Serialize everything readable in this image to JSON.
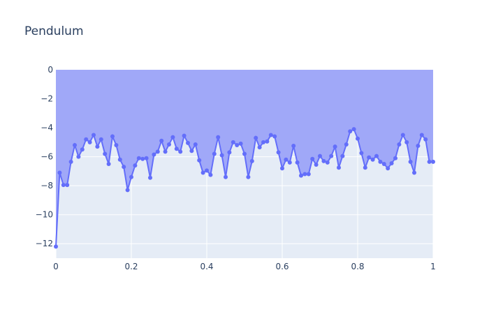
{
  "chart_data": {
    "type": "area",
    "title": "Pendulum",
    "xlabel": "",
    "ylabel": "",
    "xlim": [
      0,
      1
    ],
    "ylim": [
      -13,
      0
    ],
    "xticks": [
      0,
      0.2,
      0.4,
      0.6,
      0.8,
      1
    ],
    "xtick_labels": [
      "0",
      "0.2",
      "0.4",
      "0.6",
      "0.8",
      "1"
    ],
    "yticks": [
      -12,
      -10,
      -8,
      -6,
      -4,
      -2,
      0
    ],
    "ytick_labels": [
      "−12",
      "−10",
      "−8",
      "−6",
      "−4",
      "−2",
      "0"
    ],
    "grid": true,
    "fill_to": "top",
    "colors": {
      "line": "#636efa",
      "fill": "#a0a8f8",
      "plot_bg": "#e5ecf6",
      "text": "#2a3f5f"
    },
    "series": [
      {
        "x": [
          0,
          0.01,
          0.02,
          0.03,
          0.04,
          0.05,
          0.06,
          0.07,
          0.08,
          0.09,
          0.1,
          0.11,
          0.12,
          0.13,
          0.14,
          0.15,
          0.16,
          0.17,
          0.18,
          0.19,
          0.2,
          0.21,
          0.22,
          0.23,
          0.24,
          0.25,
          0.26,
          0.27,
          0.28,
          0.29,
          0.3,
          0.31,
          0.32,
          0.33,
          0.34,
          0.35,
          0.36,
          0.37,
          0.38,
          0.39,
          0.4,
          0.41,
          0.42,
          0.43,
          0.44,
          0.45,
          0.46,
          0.47,
          0.48,
          0.49,
          0.5,
          0.51,
          0.52,
          0.53,
          0.54,
          0.55,
          0.56,
          0.57,
          0.58,
          0.59,
          0.6,
          0.61,
          0.62,
          0.63,
          0.64,
          0.65,
          0.66,
          0.67,
          0.68,
          0.69,
          0.7,
          0.71,
          0.72,
          0.73,
          0.74,
          0.75,
          0.76,
          0.77,
          0.78,
          0.79,
          0.8,
          0.81,
          0.82,
          0.83,
          0.84,
          0.85,
          0.86,
          0.87,
          0.88,
          0.89,
          0.9,
          0.91,
          0.92,
          0.93,
          0.94,
          0.95,
          0.96,
          0.97,
          0.98,
          0.99,
          1.0
        ],
        "y": [
          -12.2,
          -7.1,
          -7.95,
          -7.95,
          -6.35,
          -5.2,
          -6.0,
          -5.5,
          -4.8,
          -5.0,
          -4.5,
          -5.3,
          -4.8,
          -5.8,
          -6.5,
          -4.6,
          -5.2,
          -6.2,
          -6.7,
          -8.3,
          -7.4,
          -6.6,
          -6.1,
          -6.15,
          -6.1,
          -7.45,
          -5.85,
          -5.65,
          -4.9,
          -5.65,
          -5.15,
          -4.65,
          -5.45,
          -5.65,
          -4.55,
          -5.05,
          -5.6,
          -5.15,
          -6.25,
          -7.1,
          -6.95,
          -7.25,
          -5.8,
          -4.65,
          -5.9,
          -7.4,
          -5.7,
          -5.0,
          -5.2,
          -5.1,
          -5.8,
          -7.4,
          -6.3,
          -4.7,
          -5.35,
          -5.0,
          -4.95,
          -4.5,
          -4.6,
          -5.7,
          -6.8,
          -6.2,
          -6.4,
          -5.25,
          -6.4,
          -7.3,
          -7.2,
          -7.2,
          -6.15,
          -6.55,
          -5.95,
          -6.3,
          -6.4,
          -5.95,
          -5.3,
          -6.75,
          -5.95,
          -5.15,
          -4.25,
          -4.1,
          -4.75,
          -5.75,
          -6.75,
          -6.05,
          -6.2,
          -5.95,
          -6.35,
          -6.5,
          -6.8,
          -6.45,
          -6.1,
          -5.15,
          -4.5,
          -5.0,
          -6.35,
          -7.1,
          -5.25,
          -4.5,
          -4.8,
          -6.35,
          -6.35
        ]
      }
    ]
  }
}
